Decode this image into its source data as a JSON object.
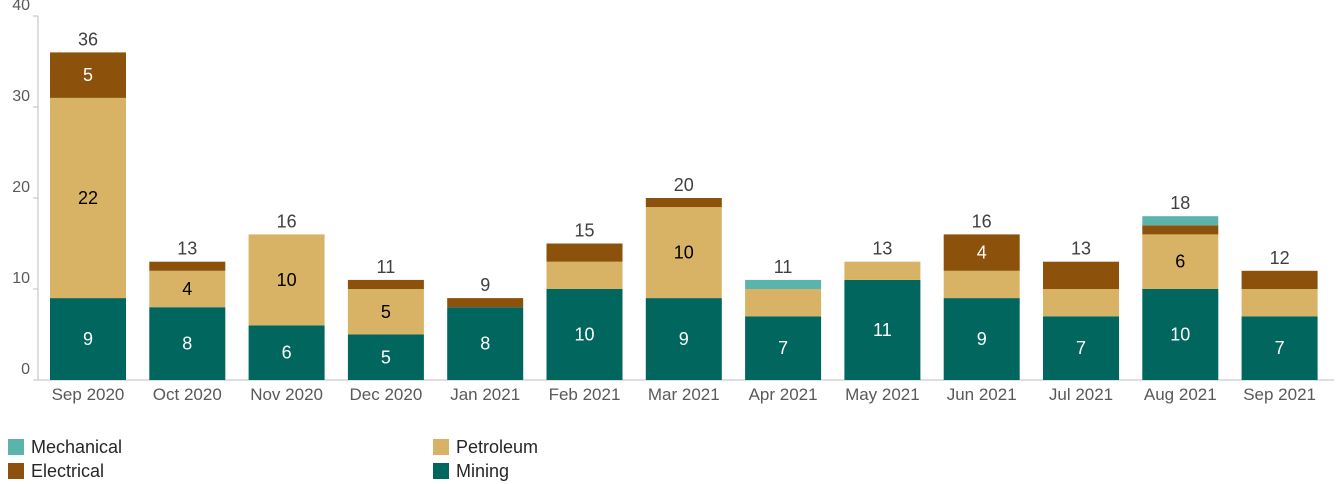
{
  "chart_data": {
    "type": "bar",
    "stacked": true,
    "categories": [
      "Sep 2020",
      "Oct 2020",
      "Nov 2020",
      "Dec 2020",
      "Jan 2021",
      "Feb 2021",
      "Mar 2021",
      "Apr 2021",
      "May 2021",
      "Jun 2021",
      "Jul 2021",
      "Aug 2021",
      "Sep 2021"
    ],
    "ylim": [
      0,
      40
    ],
    "yticks": [
      "0",
      "10",
      "20",
      "30",
      "40"
    ],
    "totals": [
      "36",
      "13",
      "16",
      "11",
      "9",
      "15",
      "20",
      "11",
      "13",
      "16",
      "13",
      "18",
      "12"
    ],
    "series": [
      {
        "name": "Mining",
        "color": "#00665e",
        "label_color": "#ffffff",
        "values": [
          9,
          8,
          6,
          5,
          8,
          10,
          9,
          7,
          11,
          9,
          7,
          10,
          7
        ],
        "labels": [
          "9",
          "8",
          "6",
          "5",
          "8",
          "10",
          "9",
          "7",
          "11",
          "9",
          "7",
          "10",
          "7"
        ]
      },
      {
        "name": "Petroleum",
        "color": "#d8b365",
        "label_color": "#000000",
        "values": [
          22,
          4,
          10,
          5,
          0,
          3,
          10,
          3,
          2,
          3,
          3,
          6,
          3
        ],
        "labels": [
          "22",
          "4",
          "10",
          "5",
          "",
          "",
          "10",
          "",
          "",
          "",
          "",
          "6",
          ""
        ]
      },
      {
        "name": "Electrical",
        "color": "#8c510a",
        "label_color": "#ffffff",
        "values": [
          5,
          1,
          0,
          1,
          1,
          2,
          1,
          0,
          0,
          4,
          3,
          1,
          2
        ],
        "labels": [
          "5",
          "",
          "",
          "",
          "",
          "",
          "",
          "",
          "",
          "4",
          "",
          "",
          ""
        ]
      },
      {
        "name": "Mechanical",
        "color": "#5ab4ac",
        "label_color": "#000000",
        "values": [
          0,
          0,
          0,
          0,
          0,
          0,
          0,
          1,
          0,
          0,
          0,
          1,
          0
        ],
        "labels": [
          "",
          "",
          "",
          "",
          "",
          "",
          "",
          "",
          "",
          "",
          "",
          "",
          ""
        ]
      }
    ],
    "grid": false,
    "legend_position": "bottom",
    "legend_order": [
      "Mechanical",
      "Electrical",
      "Petroleum",
      "Mining"
    ]
  }
}
